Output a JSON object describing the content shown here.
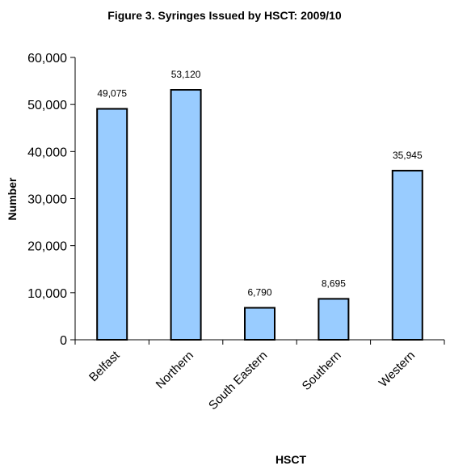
{
  "chart_data": {
    "type": "bar",
    "title": "Figure 3.  Syringes Issued by HSCT: 2009/10",
    "xlabel": "HSCT",
    "ylabel": "Number",
    "categories": [
      "Belfast",
      "Northern",
      "South Eastern",
      "Southern",
      "Western"
    ],
    "values": [
      49075,
      53120,
      6790,
      8695,
      35945
    ],
    "data_labels": [
      "49,075",
      "53,120",
      "6,790",
      "8,695",
      "35,945"
    ],
    "ylim": [
      0,
      60000
    ],
    "yticks": [
      0,
      10000,
      20000,
      30000,
      40000,
      50000,
      60000
    ],
    "ytick_labels": [
      "0",
      "10,000",
      "20,000",
      "30,000",
      "40,000",
      "50,000",
      "60,000"
    ],
    "grid": false,
    "legend": "none",
    "colors": {
      "bar_fill": "#99ccff",
      "bar_stroke": "#000000",
      "axis": "#000000"
    }
  }
}
